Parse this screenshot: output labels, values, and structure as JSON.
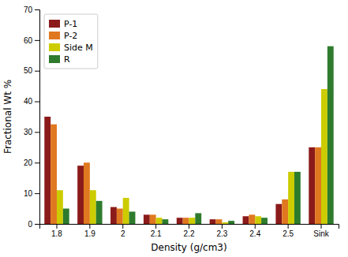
{
  "chart_data": {
    "type": "bar",
    "categories": [
      "1.8",
      "1.9",
      "2",
      "2.1",
      "2.2",
      "2.3",
      "2.4",
      "2.5",
      "Sink"
    ],
    "series": [
      {
        "name": "P-1",
        "color": "#8B1A1A",
        "values": [
          35,
          19,
          5.5,
          3,
          2,
          1.5,
          2.5,
          6.5,
          25
        ]
      },
      {
        "name": "P-2",
        "color": "#E07820",
        "values": [
          32.5,
          20,
          5,
          3,
          2,
          1.5,
          3,
          8,
          25
        ]
      },
      {
        "name": "Side M",
        "color": "#CCCC00",
        "values": [
          11,
          11,
          8.5,
          2,
          2,
          0.5,
          2.5,
          17,
          44
        ]
      },
      {
        "name": "R",
        "color": "#2E7B2E",
        "values": [
          5,
          7.5,
          4,
          1.5,
          3.5,
          1,
          2,
          17,
          58
        ]
      }
    ],
    "xlabel": "Density (g/cm3)",
    "ylabel": "Fractional Wt %",
    "ylim": [
      0,
      70
    ],
    "yticks": [
      0,
      10,
      20,
      30,
      40,
      50,
      60,
      70
    ],
    "grid": false,
    "legend": "upper left"
  }
}
